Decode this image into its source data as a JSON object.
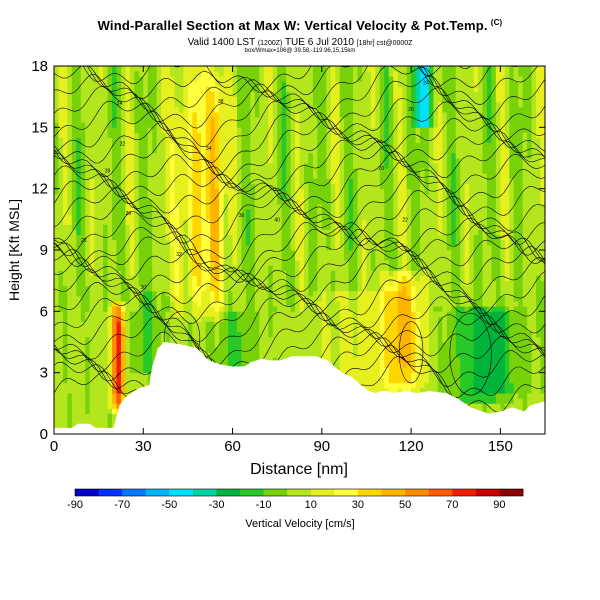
{
  "header": {
    "title": "Wind-Parallel Section at Max W: Vertical Velocity & Pot.Temp.",
    "title_tag": "(C)",
    "subtitle": "Valid 1400 LST",
    "subtitle_init": "(1200Z)",
    "subtitle_date": "TUE 6 Jul 2010",
    "subtitle_model": "[18hr] cst@0000Z",
    "note": "box/Wmax=106@ 39.58,-119.96,15,15km"
  },
  "chart_data": {
    "type": "heatmap",
    "xlabel": "Distance [nm]",
    "ylabel": "Height [Kft MSL]",
    "xlim": [
      0,
      165
    ],
    "ylim": [
      0,
      18
    ],
    "xticks": [
      "0",
      "30",
      "60",
      "90",
      "120",
      "150"
    ],
    "yticks": [
      "0",
      "3",
      "6",
      "9",
      "12",
      "15",
      "18"
    ],
    "colorbar": {
      "label": "Vertical Velocity [cm/s]",
      "range": [
        -90,
        100
      ],
      "tick_labels": [
        "-90",
        "-70",
        "-50",
        "-30",
        "-10",
        "10",
        "30",
        "50",
        "70",
        "90"
      ],
      "colors": [
        "#0000c8",
        "#0030ff",
        "#0078ff",
        "#00b4ff",
        "#00e0ff",
        "#00d2a0",
        "#00b43c",
        "#28c828",
        "#78d20a",
        "#b4e61e",
        "#e6f01e",
        "#ffff3c",
        "#ffd700",
        "#ffb400",
        "#ff8c00",
        "#ff5a00",
        "#f01e00",
        "#c80000",
        "#8c0000"
      ]
    },
    "contour_labels": [
      "20",
      "22",
      "24",
      "26",
      "28",
      "30",
      "32",
      "34",
      "36",
      "38",
      "40"
    ],
    "contour_field": "Potential temperature [C]",
    "terrain_profile": {
      "x": [
        0,
        6,
        8,
        12,
        14,
        20,
        22,
        24,
        26,
        28,
        32,
        33,
        35,
        37,
        42,
        48,
        52,
        56,
        60,
        64,
        66,
        70,
        72,
        76,
        80,
        84,
        88,
        92,
        95,
        98,
        100,
        104,
        106,
        108,
        110,
        112,
        114,
        118,
        122,
        126,
        132,
        136,
        140,
        146,
        150,
        154,
        158,
        160,
        165
      ],
      "y": [
        0.3,
        0.3,
        0.5,
        0.5,
        0.3,
        0.3,
        1.4,
        1.8,
        2.0,
        2.2,
        2.4,
        3.3,
        4.2,
        4.5,
        4.4,
        4.2,
        3.6,
        3.4,
        3.3,
        3.3,
        3.5,
        3.7,
        3.6,
        3.6,
        3.8,
        3.8,
        3.8,
        3.6,
        3.2,
        2.9,
        2.8,
        2.3,
        2.1,
        2.0,
        2.1,
        2.1,
        2.0,
        2.1,
        2.0,
        2.1,
        2.0,
        1.7,
        1.3,
        1.0,
        1.1,
        1.3,
        1.1,
        1.4,
        1.6
      ]
    },
    "updraft_cores": [
      {
        "x": 21.5,
        "z_bottom": 1.5,
        "z_top": 6.0,
        "w": 75
      },
      {
        "x": 54,
        "z_bottom": 6.0,
        "z_top": 18.0,
        "w": 45
      },
      {
        "x": 42,
        "z_bottom": 6.0,
        "z_top": 18.0,
        "w": 22
      },
      {
        "x": 48,
        "z_bottom": 6.0,
        "z_top": 18.0,
        "w": 25
      },
      {
        "x": 117,
        "z_bottom": 2.5,
        "z_top": 7.5,
        "w": 40
      }
    ],
    "downdraft_cores": [
      {
        "x": 124,
        "z_bottom": 15.5,
        "z_top": 18.0,
        "w": -40
      },
      {
        "x": 143,
        "z_bottom": 2.0,
        "z_top": 5.8,
        "w": -20
      }
    ],
    "grid": false
  }
}
